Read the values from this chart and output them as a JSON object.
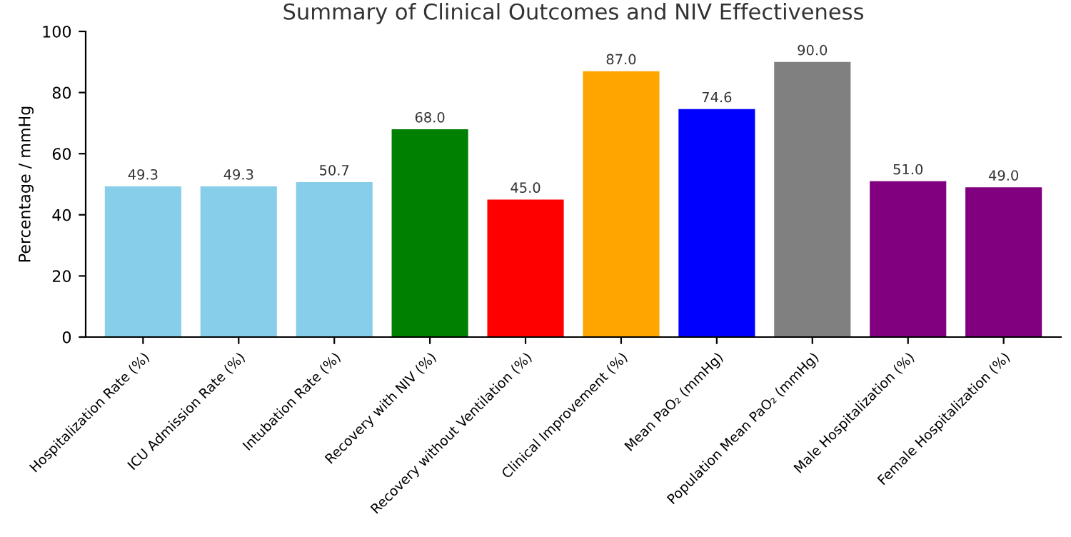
{
  "chart_data": {
    "type": "bar",
    "title": "Summary of Clinical Outcomes and NIV Effectiveness",
    "ylabel": "Percentage / mmHg",
    "categories": [
      "Hospitalization Rate (%)",
      "ICU Admission Rate (%)",
      "Intubation Rate (%)",
      "Recovery with NIV (%)",
      "Recovery without Ventilation (%)",
      "Clinical Improvement (%)",
      "Mean PaO₂ (mmHg)",
      "Population Mean PaO₂ (mmHg)",
      "Male Hospitalization (%)",
      "Female Hospitalization (%)"
    ],
    "values": [
      49.3,
      49.3,
      50.7,
      68.0,
      45.0,
      87.0,
      74.6,
      90.0,
      51.0,
      49.0
    ],
    "value_labels": [
      "49.3",
      "49.3",
      "50.7",
      "68.0",
      "45.0",
      "87.0",
      "74.6",
      "90.0",
      "51.0",
      "49.0"
    ],
    "colors": [
      "#87ceeb",
      "#87ceeb",
      "#87ceeb",
      "#008000",
      "#ff0000",
      "#ffa500",
      "#0000ff",
      "#808080",
      "#800080",
      "#800080"
    ],
    "ylim": [
      0,
      100
    ],
    "yticks": [
      0,
      20,
      40,
      60,
      80,
      100
    ],
    "grid": false,
    "legend": false
  }
}
